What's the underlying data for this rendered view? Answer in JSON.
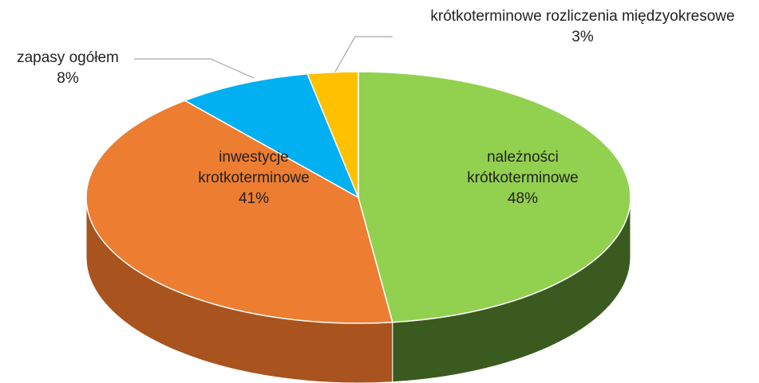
{
  "chart_data": {
    "type": "pie",
    "categories": [
      "należności krótkoterminowe",
      "inwestycje krotkoterminowe",
      "zapasy ogółem",
      "krótkoterminowe rozliczenia międzyokresowe"
    ],
    "values": [
      48,
      41,
      8,
      3
    ],
    "value_labels": [
      "48%",
      "41%",
      "8%",
      "3%"
    ],
    "colors": [
      "#92d050",
      "#ed7d31",
      "#00b0f0",
      "#ffc000"
    ],
    "side_colors": [
      "#3b5a1f",
      "#a9531e",
      "#0077a8",
      "#b38600"
    ]
  }
}
